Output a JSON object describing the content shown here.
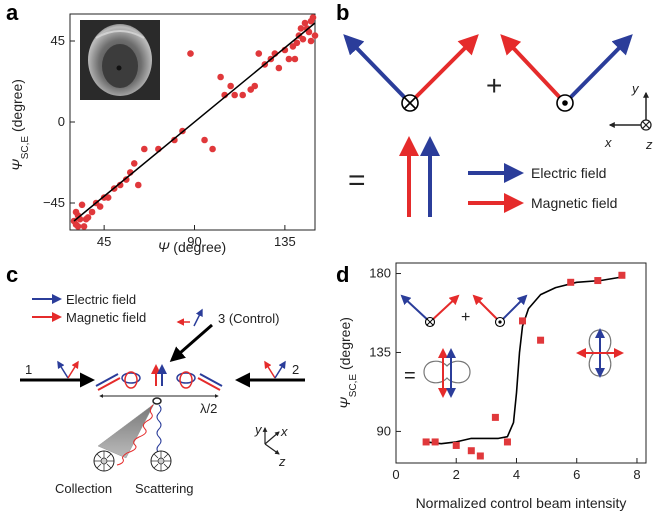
{
  "panels": {
    "a": {
      "label": "a"
    },
    "b": {
      "label": "b"
    },
    "c": {
      "label": "c"
    },
    "d": {
      "label": "d"
    }
  },
  "colors": {
    "electric": "#2b3d9a",
    "magnetic": "#e52b2b",
    "points": "#e0383b",
    "line": "#000000"
  },
  "panel_b": {
    "plus": "+",
    "equals": "=",
    "legend": {
      "electric": "Electric field",
      "magnetic": "Magnetic field"
    },
    "axes": {
      "y": "y",
      "x": "x",
      "z": "z"
    }
  },
  "panel_c": {
    "legend": {
      "electric": "Electric field",
      "magnetic": "Magnetic field"
    },
    "beam1": "1",
    "beam2": "2",
    "beam3": "3 (Control)",
    "lambda": "λ/2",
    "collection": "Collection",
    "scattering": "Scattering",
    "axes": {
      "y": "y",
      "x": "x",
      "z": "z"
    }
  },
  "panel_d": {
    "plus": "+",
    "equals": "="
  },
  "chart_data": [
    {
      "type": "scatter",
      "panel": "a",
      "xlabel_sym": "Ψ",
      "xlabel_unit": " (degree)",
      "ylabel_sym": "Ψ",
      "ylabel_sub": "SC,E",
      "ylabel_unit": " (degree)",
      "xlim": [
        28,
        150
      ],
      "ylim": [
        -60,
        60
      ],
      "x_ticks": [
        45,
        90,
        135
      ],
      "y_ticks": [
        -45,
        0,
        45
      ],
      "x_tick_labels": [
        "45",
        "90",
        "135"
      ],
      "y_tick_labels": [
        "−45",
        "0",
        "45"
      ],
      "points": [
        [
          30,
          -55
        ],
        [
          31,
          -50
        ],
        [
          31,
          -57
        ],
        [
          32,
          -58
        ],
        [
          32,
          -52
        ],
        [
          33,
          -54
        ],
        [
          34,
          -46
        ],
        [
          35,
          -58
        ],
        [
          36,
          -54
        ],
        [
          37,
          -53
        ],
        [
          39,
          -50
        ],
        [
          41,
          -45
        ],
        [
          43,
          -47
        ],
        [
          45,
          -42
        ],
        [
          47,
          -42
        ],
        [
          50,
          -37
        ],
        [
          53,
          -35
        ],
        [
          56,
          -32
        ],
        [
          58,
          -28
        ],
        [
          60,
          -23
        ],
        [
          62,
          -35
        ],
        [
          65,
          -15
        ],
        [
          72,
          -15
        ],
        [
          80,
          -10
        ],
        [
          84,
          -5
        ],
        [
          88,
          38
        ],
        [
          95,
          -10
        ],
        [
          99,
          -15
        ],
        [
          103,
          25
        ],
        [
          105,
          15
        ],
        [
          108,
          20
        ],
        [
          110,
          15
        ],
        [
          114,
          15
        ],
        [
          118,
          18
        ],
        [
          120,
          20
        ],
        [
          122,
          38
        ],
        [
          125,
          32
        ],
        [
          128,
          35
        ],
        [
          130,
          38
        ],
        [
          132,
          30
        ],
        [
          135,
          40
        ],
        [
          137,
          35
        ],
        [
          139,
          42
        ],
        [
          140,
          35
        ],
        [
          141,
          44
        ],
        [
          142,
          48
        ],
        [
          143,
          52
        ],
        [
          144,
          46
        ],
        [
          145,
          55
        ],
        [
          146,
          52
        ],
        [
          147,
          50
        ],
        [
          148,
          56
        ],
        [
          148,
          45
        ],
        [
          149,
          58
        ],
        [
          150,
          48
        ]
      ],
      "fit_line": [
        [
          30,
          -55
        ],
        [
          150,
          55
        ]
      ]
    },
    {
      "type": "line",
      "panel": "d",
      "xlabel": "Normalized control beam intensity",
      "ylabel_sym": "Ψ",
      "ylabel_sub": "SC,E",
      "ylabel_unit": " (degree)",
      "xlim": [
        0,
        8.3
      ],
      "ylim": [
        72,
        186
      ],
      "x_ticks": [
        0,
        2,
        4,
        6,
        8
      ],
      "y_ticks": [
        90,
        135,
        180
      ],
      "x_tick_labels": [
        "0",
        "2",
        "4",
        "6",
        "8"
      ],
      "y_tick_labels": [
        "90",
        "135",
        "180"
      ],
      "markers": [
        [
          1.0,
          84
        ],
        [
          1.3,
          84
        ],
        [
          2.0,
          82
        ],
        [
          2.5,
          79
        ],
        [
          2.8,
          76
        ],
        [
          3.3,
          98
        ],
        [
          3.7,
          84
        ],
        [
          4.2,
          153
        ],
        [
          4.8,
          142
        ],
        [
          5.8,
          175
        ],
        [
          6.7,
          176
        ],
        [
          7.5,
          179
        ]
      ],
      "curve": [
        [
          1.0,
          84
        ],
        [
          1.5,
          83
        ],
        [
          2.0,
          84
        ],
        [
          2.5,
          86
        ],
        [
          3.0,
          86
        ],
        [
          3.4,
          86
        ],
        [
          3.7,
          87
        ],
        [
          3.9,
          95
        ],
        [
          4.0,
          112
        ],
        [
          4.1,
          135
        ],
        [
          4.2,
          150
        ],
        [
          4.4,
          160
        ],
        [
          4.8,
          168
        ],
        [
          5.3,
          172
        ],
        [
          6.0,
          175
        ],
        [
          6.8,
          176
        ],
        [
          7.5,
          178
        ]
      ]
    }
  ]
}
